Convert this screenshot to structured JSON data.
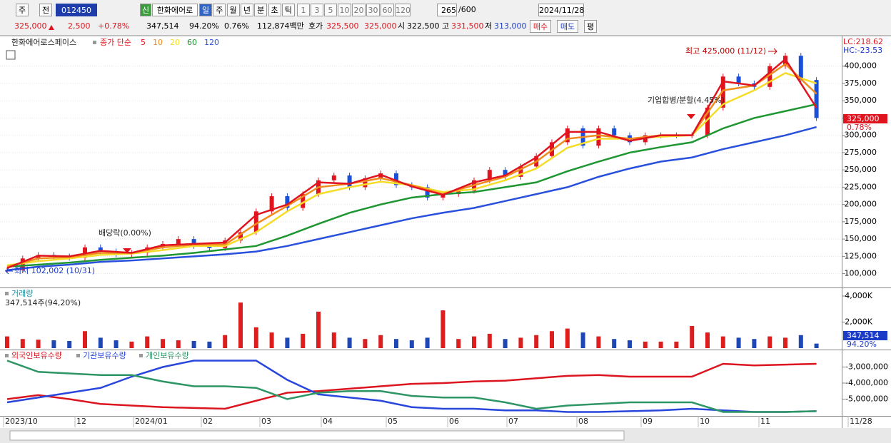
{
  "toolbar": {
    "market": "주",
    "kind": "전",
    "code": "012450",
    "badge": "신",
    "name": "한화에어로",
    "periods": [
      "일",
      "주",
      "월",
      "년",
      "분",
      "초",
      "틱"
    ],
    "intervals": [
      1,
      3,
      5,
      10,
      20,
      30,
      60,
      120
    ],
    "count": 265,
    "max": "/600",
    "date": "2024/11/28"
  },
  "quote": {
    "price": "325,000",
    "change": "2,500",
    "change_pct": "+0.78%",
    "volume": "347,514",
    "volume_ratio": "94.20%",
    "turnover": "0.76%",
    "amount": "112,874백만",
    "bid_label": "호가",
    "ask": "325,500",
    "bid": "325,000",
    "open_label": "시",
    "open": "322,500",
    "high_label": "고",
    "high": "331,500",
    "low_label": "저",
    "low": "313,000",
    "buy": "매수",
    "sell": "매도",
    "avg": "평"
  },
  "price_chart": {
    "name": "한화에어로스페이스",
    "ma_label": "종가 단순",
    "lc": "LC:218.62",
    "hc": "HC:-23.53",
    "ylim": [
      80000,
      442000
    ],
    "grid": true,
    "yticks": [
      {
        "value": 100000,
        "label": "100,000"
      },
      {
        "value": 125000,
        "label": "125,000"
      },
      {
        "value": 150000,
        "label": "150,000"
      },
      {
        "value": 175000,
        "label": "175,000"
      },
      {
        "value": 200000,
        "label": "200,000"
      },
      {
        "value": 225000,
        "label": "225,000"
      },
      {
        "value": 250000,
        "label": "250,000"
      },
      {
        "value": 275000,
        "label": "275,000"
      },
      {
        "value": 300000,
        "label": "300,000"
      },
      {
        "value": 325000,
        "label": "325,000"
      },
      {
        "value": 350000,
        "label": "350,000"
      },
      {
        "value": 375000,
        "label": "375,000"
      },
      {
        "value": 400000,
        "label": "400,000"
      }
    ],
    "close": [
      105000,
      122000,
      127000,
      125000,
      123000,
      138000,
      132000,
      128000,
      130000,
      138000,
      143000,
      150000,
      140000,
      137000,
      148000,
      160000,
      190000,
      212000,
      195000,
      215000,
      235000,
      242000,
      225000,
      238000,
      245000,
      228000,
      225000,
      210000,
      215000,
      220000,
      235000,
      250000,
      240000,
      255000,
      270000,
      290000,
      310000,
      285000,
      310000,
      300000,
      290000,
      300000,
      300000,
      300000,
      300000,
      340000,
      385000,
      375000,
      370000,
      400000,
      415000,
      380000,
      325000
    ],
    "ma": [
      {
        "name": 5,
        "color": "#e0141e",
        "values": [
          108000,
          126000,
          125000,
          133000,
          130000,
          141000,
          143000,
          145000,
          185000,
          200000,
          232000,
          230000,
          243000,
          226000,
          214000,
          232000,
          242000,
          268000,
          305000,
          305000,
          292000,
          300000,
          300000,
          378000,
          372000,
          410000,
          340000
        ]
      },
      {
        "name": 10,
        "color": "#f08c1e",
        "values": [
          110000,
          122000,
          124000,
          130000,
          130000,
          138000,
          142000,
          142000,
          172000,
          198000,
          225000,
          230000,
          238000,
          228000,
          215000,
          228000,
          240000,
          262000,
          295000,
          300000,
          295000,
          300000,
          300000,
          365000,
          372000,
          403000,
          360000
        ]
      },
      {
        "name": 20,
        "color": "#f5dc28",
        "values": [
          112000,
          118000,
          122000,
          127000,
          129000,
          134000,
          140000,
          140000,
          160000,
          190000,
          215000,
          225000,
          233000,
          228000,
          218000,
          222000,
          235000,
          252000,
          282000,
          295000,
          295000,
          298000,
          300000,
          345000,
          365000,
          390000,
          375000
        ]
      },
      {
        "name": 60,
        "color": "#1e9632",
        "values": [
          110000,
          113000,
          116000,
          120000,
          123000,
          126000,
          130000,
          135000,
          140000,
          155000,
          172000,
          188000,
          200000,
          210000,
          215000,
          218000,
          225000,
          232000,
          248000,
          262000,
          275000,
          283000,
          290000,
          310000,
          325000,
          335000,
          345000
        ]
      },
      {
        "name": 120,
        "color": "#2850dc",
        "values": [
          105000,
          110000,
          113000,
          117000,
          119000,
          122000,
          125000,
          128000,
          132000,
          140000,
          150000,
          160000,
          170000,
          180000,
          188000,
          195000,
          205000,
          215000,
          225000,
          240000,
          252000,
          262000,
          268000,
          280000,
          290000,
          300000,
          312000
        ]
      }
    ],
    "annotations": {
      "high": "최고 425,000 (11/12)",
      "low": "최저 102,002 (10/31)",
      "dividend": "배당락(0.00%)",
      "merger": "기업합병/분할(4.45%)"
    },
    "last_price": "325,000",
    "last_change": "0.78%"
  },
  "volume_chart": {
    "title": "거래량",
    "info": "347,514주(94,20%)",
    "ylim": [
      0,
      4600000
    ],
    "yticks": [
      {
        "value": 2000000,
        "label": "2,000K"
      },
      {
        "value": 4000000,
        "label": "4,000K"
      }
    ],
    "values": [
      900000,
      700000,
      650000,
      600000,
      550000,
      1300000,
      800000,
      600000,
      500000,
      900000,
      700000,
      600000,
      550000,
      500000,
      1000000,
      3500000,
      1600000,
      1200000,
      800000,
      1100000,
      2800000,
      1200000,
      800000,
      700000,
      1000000,
      700000,
      600000,
      800000,
      2900000,
      700000,
      900000,
      1100000,
      700000,
      800000,
      1000000,
      1300000,
      1500000,
      1200000,
      900000,
      700000,
      600000,
      500000,
      500000,
      500000,
      1700000,
      1200000,
      900000,
      800000,
      700000,
      900000,
      800000,
      1000000,
      347514
    ],
    "last": "347,514",
    "last_pct": "94.20%"
  },
  "holdings_chart": {
    "ylim": [
      -6000000,
      -2000000
    ],
    "yticks": [
      {
        "value": -3000000,
        "label": "-3,000,000"
      },
      {
        "value": -4000000,
        "label": "-4,000,000"
      },
      {
        "value": -5000000,
        "label": "-5,000,000"
      }
    ],
    "series": [
      {
        "name": "외국인보유수량",
        "color": "#dc141e",
        "values": [
          -5000000,
          -4750000,
          -5000000,
          -5300000,
          -5400000,
          -5500000,
          -5550000,
          -5600000,
          -5100000,
          -4600000,
          -4500000,
          -4350000,
          -4200000,
          -4050000,
          -4000000,
          -3900000,
          -3850000,
          -3700000,
          -3550000,
          -3500000,
          -3600000,
          -3600000,
          -3600000,
          -2800000,
          -2900000,
          -2850000,
          -2800000
        ]
      },
      {
        "name": "기관보유수량",
        "color": "#2846dc",
        "values": [
          -5200000,
          -4900000,
          -4600000,
          -4300000,
          -3600000,
          -3000000,
          -2600000,
          -2600000,
          -2600000,
          -3800000,
          -4700000,
          -4900000,
          -5100000,
          -5500000,
          -5600000,
          -5600000,
          -5700000,
          -5700000,
          -5800000,
          -5800000,
          -5750000,
          -5700000,
          -5600000,
          -5700000,
          -5800000,
          -5800000,
          -5750000
        ]
      },
      {
        "name": "개인보유수량",
        "color": "#2d9664",
        "values": [
          -2600000,
          -3300000,
          -3400000,
          -3500000,
          -3500000,
          -3900000,
          -4200000,
          -4200000,
          -4300000,
          -5000000,
          -4600000,
          -4500000,
          -4500000,
          -4800000,
          -4900000,
          -4900000,
          -5200000,
          -5600000,
          -5400000,
          -5300000,
          -5200000,
          -5200000,
          -5200000,
          -5800000,
          -5800000,
          -5800000,
          -5750000
        ]
      }
    ]
  },
  "x_axis": [
    "2023/10",
    "12",
    "2024/01",
    "02",
    "03",
    "04",
    "05",
    "06",
    "07",
    "08",
    "09",
    "10",
    "11",
    "11/28"
  ]
}
